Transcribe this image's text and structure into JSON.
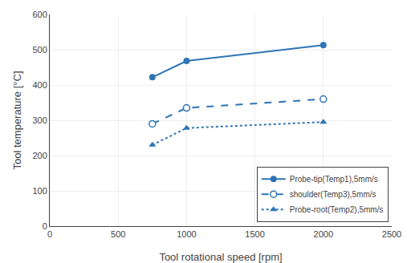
{
  "chart_data": {
    "type": "line",
    "x_label": "Tool rotational speed [rpm]",
    "y_label": "Tool temperature [°C]",
    "series": [
      {
        "name": "Probe-tip(Temp1),5mm/s",
        "x": [
          750,
          1000,
          2000
        ],
        "values": [
          422,
          468,
          513
        ],
        "color": "#2e74b5",
        "line_style": "solid",
        "marker": "circle"
      },
      {
        "name": "shoulder(Temp3),5mm/s",
        "x": [
          750,
          1000,
          2000
        ],
        "values": [
          290,
          335,
          360
        ],
        "color": "#2e74b5",
        "line_style": "dashed",
        "marker": "circle-open"
      },
      {
        "name": "Probe-root(Temp2),5mm/s",
        "x": [
          750,
          1000,
          2000
        ],
        "values": [
          230,
          278,
          295
        ],
        "color": "#2e74b5",
        "line_style": "dotted",
        "marker": "triangle-up"
      }
    ],
    "xlim": [
      0,
      2500
    ],
    "ylim": [
      0,
      600
    ],
    "xticks": [
      0,
      500,
      1000,
      1500,
      2000,
      2500
    ],
    "yticks": [
      0,
      100,
      200,
      300,
      400,
      500,
      600
    ],
    "grid": true,
    "legend": "lower right"
  }
}
